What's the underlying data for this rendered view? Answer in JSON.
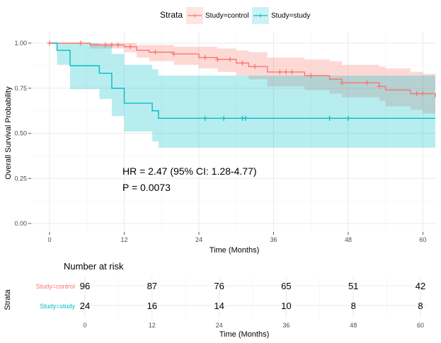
{
  "legend": {
    "title": "Strata",
    "items": [
      {
        "label": "Study=control",
        "color": "#F8766D"
      },
      {
        "label": "Study=study",
        "color": "#00BFC4"
      }
    ]
  },
  "chart_data": {
    "type": "line",
    "subtype": "kaplan-meier",
    "xlabel": "Time (Months)",
    "ylabel": "Overall Survival Probability",
    "xlim": [
      0,
      62
    ],
    "ylim": [
      0,
      1
    ],
    "x_ticks": [
      0,
      12,
      24,
      36,
      48,
      60
    ],
    "y_ticks": [
      0.0,
      0.25,
      0.5,
      0.75,
      1.0
    ],
    "y_tick_labels": [
      "0.00",
      "0.25",
      "0.50",
      "0.75",
      "1.00"
    ],
    "grid": true,
    "legend_position": "top",
    "annotation": {
      "hr": "HR = 2.47 (95% CI: 1.28-4.77)",
      "p": "P = 0.0073"
    },
    "series": [
      {
        "name": "Study=control",
        "color": "#F8766D",
        "steps": [
          [
            0,
            1.0
          ],
          [
            6.5,
            0.99
          ],
          [
            12,
            0.98
          ],
          [
            14,
            0.96
          ],
          [
            16,
            0.95
          ],
          [
            20,
            0.94
          ],
          [
            24,
            0.92
          ],
          [
            27,
            0.91
          ],
          [
            30,
            0.89
          ],
          [
            32,
            0.87
          ],
          [
            35,
            0.84
          ],
          [
            41,
            0.82
          ],
          [
            45,
            0.8
          ],
          [
            47,
            0.78
          ],
          [
            53,
            0.76
          ],
          [
            54,
            0.74
          ],
          [
            58,
            0.72
          ],
          [
            60,
            0.72
          ],
          [
            62,
            0.7
          ]
        ],
        "ci_upper": [
          [
            0,
            1.0
          ],
          [
            6.5,
            1.0
          ],
          [
            12,
            1.0
          ],
          [
            14,
            0.99
          ],
          [
            16,
            0.99
          ],
          [
            20,
            0.98
          ],
          [
            24,
            0.98
          ],
          [
            27,
            0.97
          ],
          [
            30,
            0.96
          ],
          [
            32,
            0.95
          ],
          [
            35,
            0.92
          ],
          [
            41,
            0.91
          ],
          [
            45,
            0.9
          ],
          [
            47,
            0.88
          ],
          [
            53,
            0.87
          ],
          [
            54,
            0.86
          ],
          [
            58,
            0.84
          ],
          [
            60,
            0.83
          ],
          [
            62,
            0.83
          ]
        ],
        "ci_lower": [
          [
            0,
            1.0
          ],
          [
            6.5,
            0.97
          ],
          [
            12,
            0.95
          ],
          [
            14,
            0.92
          ],
          [
            16,
            0.9
          ],
          [
            20,
            0.88
          ],
          [
            24,
            0.86
          ],
          [
            27,
            0.84
          ],
          [
            30,
            0.82
          ],
          [
            32,
            0.8
          ],
          [
            35,
            0.76
          ],
          [
            41,
            0.74
          ],
          [
            45,
            0.72
          ],
          [
            47,
            0.7
          ],
          [
            53,
            0.68
          ],
          [
            54,
            0.65
          ],
          [
            58,
            0.63
          ],
          [
            60,
            0.61
          ],
          [
            62,
            0.6
          ]
        ],
        "censor_x": [
          0,
          5,
          9,
          10,
          11,
          13,
          17,
          20,
          25,
          27,
          29,
          31,
          33,
          37,
          38,
          39,
          42,
          47,
          51,
          53,
          59,
          60
        ],
        "at_risk": [
          96,
          87,
          76,
          65,
          51,
          42
        ]
      },
      {
        "name": "Study=study",
        "color": "#00BFC4",
        "steps": [
          [
            0,
            1.0
          ],
          [
            1.2,
            0.96
          ],
          [
            3.3,
            0.875
          ],
          [
            8,
            0.833
          ],
          [
            10,
            0.75
          ],
          [
            12,
            0.667
          ],
          [
            16.5,
            0.625
          ],
          [
            17.5,
            0.583
          ],
          [
            62,
            0.583
          ]
        ],
        "ci_upper": [
          [
            0,
            1.0
          ],
          [
            1.2,
            1.0
          ],
          [
            3.3,
            1.0
          ],
          [
            8,
            0.99
          ],
          [
            10,
            0.94
          ],
          [
            12,
            0.88
          ],
          [
            16.5,
            0.855
          ],
          [
            17.5,
            0.82
          ],
          [
            62,
            0.82
          ]
        ],
        "ci_lower": [
          [
            0,
            1.0
          ],
          [
            1.2,
            0.88
          ],
          [
            3.3,
            0.745
          ],
          [
            8,
            0.69
          ],
          [
            10,
            0.595
          ],
          [
            12,
            0.51
          ],
          [
            16.5,
            0.455
          ],
          [
            17.5,
            0.42
          ],
          [
            62,
            0.42
          ]
        ],
        "censor_x": [
          25,
          28,
          31,
          31.5,
          45,
          48
        ],
        "at_risk": [
          24,
          16,
          14,
          10,
          8,
          8
        ]
      }
    ],
    "risk_table": {
      "title": "Number at risk",
      "ylabel": "Strata",
      "xlabel": "Time (Months)",
      "times": [
        0,
        12,
        24,
        36,
        48,
        60
      ],
      "rows": [
        {
          "label": "Study=control",
          "values": [
            96,
            87,
            76,
            65,
            51,
            42
          ],
          "color": "#F8766D"
        },
        {
          "label": "Study=study",
          "values": [
            24,
            16,
            14,
            10,
            8,
            8
          ],
          "color": "#00BFC4"
        }
      ]
    }
  }
}
